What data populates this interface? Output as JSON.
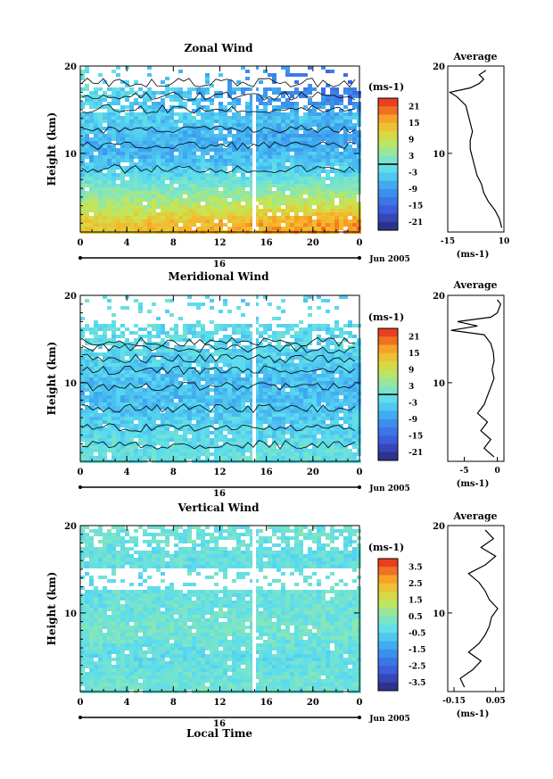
{
  "chart_data": [
    {
      "type": "heatmap",
      "title": "Zonal Wind",
      "ylabel": "Height (km)",
      "xlabel": "",
      "x_ticks": [
        "0",
        "4",
        "8",
        "12",
        "16",
        "20",
        "0"
      ],
      "y_ticks": [
        "20",
        "10"
      ],
      "xlim": [
        0,
        24
      ],
      "ylim": [
        1,
        20
      ],
      "date_label": "16",
      "month_label": "Jun 2005",
      "colorbar": {
        "unit": "(ms-1)",
        "ticks": [
          "21",
          "15",
          "9",
          "3",
          "-3",
          "-9",
          "-15",
          "-21"
        ],
        "values": [
          21,
          15,
          9,
          3,
          -3,
          -9,
          -15,
          -21
        ],
        "range": [
          -24,
          24
        ]
      },
      "field": {
        "data_ceiling_km": 17.5,
        "gap_start_hour": 14.8,
        "rows": [
          {
            "height_km": 2,
            "left": 12,
            "right": 18
          },
          {
            "height_km": 4,
            "left": 6,
            "right": 10
          },
          {
            "height_km": 6,
            "left": 2,
            "right": 3
          },
          {
            "height_km": 8,
            "left": -4,
            "right": -3
          },
          {
            "height_km": 10,
            "left": -7,
            "right": -6
          },
          {
            "height_km": 12,
            "left": -5,
            "right": -9
          },
          {
            "height_km": 14,
            "left": -3,
            "right": -6
          },
          {
            "height_km": 16,
            "left": -2,
            "right": -12
          },
          {
            "height_km": 17.5,
            "left": 0,
            "right": -15
          }
        ]
      },
      "average_panel": {
        "title": "Average",
        "xlabel": "(ms-1)",
        "x_ticks": [
          "-15",
          "10"
        ],
        "y_ticks": [
          "20",
          "10"
        ],
        "xlim": [
          -15,
          10
        ],
        "ylim": [
          1,
          20
        ],
        "profile": [
          {
            "height_km": 1.5,
            "value": 9
          },
          {
            "height_km": 2.5,
            "value": 8
          },
          {
            "height_km": 3.5,
            "value": 6
          },
          {
            "height_km": 4.5,
            "value": 3
          },
          {
            "height_km": 5.5,
            "value": 1
          },
          {
            "height_km": 6.5,
            "value": 0
          },
          {
            "height_km": 7.5,
            "value": -2
          },
          {
            "height_km": 8.5,
            "value": -3
          },
          {
            "height_km": 9.5,
            "value": -4
          },
          {
            "height_km": 10.5,
            "value": -5
          },
          {
            "height_km": 11.5,
            "value": -5
          },
          {
            "height_km": 12.5,
            "value": -4
          },
          {
            "height_km": 13.5,
            "value": -5
          },
          {
            "height_km": 14.5,
            "value": -6
          },
          {
            "height_km": 15.5,
            "value": -7
          },
          {
            "height_km": 16.5,
            "value": -11
          },
          {
            "height_km": 17,
            "value": -14
          },
          {
            "height_km": 17.5,
            "value": -5
          },
          {
            "height_km": 18,
            "value": -1
          },
          {
            "height_km": 18.5,
            "value": 1
          },
          {
            "height_km": 19,
            "value": -1
          },
          {
            "height_km": 19.5,
            "value": 2
          }
        ]
      }
    },
    {
      "type": "heatmap",
      "title": "Meridional Wind",
      "ylabel": "Height (km)",
      "xlabel": "",
      "x_ticks": [
        "0",
        "4",
        "8",
        "12",
        "16",
        "20",
        "0"
      ],
      "y_ticks": [
        "20",
        "10"
      ],
      "xlim": [
        0,
        24
      ],
      "ylim": [
        1,
        20
      ],
      "date_label": "16",
      "month_label": "Jun 2005",
      "colorbar": {
        "unit": "(ms-1)",
        "ticks": [
          "21",
          "15",
          "9",
          "3",
          "-3",
          "-9",
          "-15",
          "-21"
        ],
        "values": [
          21,
          15,
          9,
          3,
          -3,
          -9,
          -15,
          -21
        ],
        "range": [
          -24,
          24
        ]
      },
      "field": {
        "data_ceiling_km": 16.8,
        "gap_start_hour": 14.8,
        "rows": [
          {
            "height_km": 2,
            "left": -1,
            "right": -1
          },
          {
            "height_km": 4,
            "left": -2,
            "right": -3
          },
          {
            "height_km": 6,
            "left": -4,
            "right": -4
          },
          {
            "height_km": 8,
            "left": -6,
            "right": -5
          },
          {
            "height_km": 10,
            "left": -5,
            "right": -6
          },
          {
            "height_km": 12,
            "left": -4,
            "right": -4
          },
          {
            "height_km": 14,
            "left": -2,
            "right": -3
          },
          {
            "height_km": 16.8,
            "left": -1,
            "right": -3
          }
        ]
      },
      "average_panel": {
        "title": "Average",
        "xlabel": "(ms-1)",
        "x_ticks": [
          "-5",
          "0"
        ],
        "y_ticks": [
          "20",
          "10"
        ],
        "xlim": [
          -7.5,
          1
        ],
        "ylim": [
          1,
          20
        ],
        "profile": [
          {
            "height_km": 1.5,
            "value": -0.5
          },
          {
            "height_km": 2.5,
            "value": -2
          },
          {
            "height_km": 3.5,
            "value": -1
          },
          {
            "height_km": 4.5,
            "value": -2.5
          },
          {
            "height_km": 5.5,
            "value": -1.5
          },
          {
            "height_km": 6.5,
            "value": -3
          },
          {
            "height_km": 7.5,
            "value": -2
          },
          {
            "height_km": 8.5,
            "value": -1.5
          },
          {
            "height_km": 9.5,
            "value": -1
          },
          {
            "height_km": 10.5,
            "value": -0.5
          },
          {
            "height_km": 11.5,
            "value": -0.8
          },
          {
            "height_km": 12.5,
            "value": -0.5
          },
          {
            "height_km": 13.5,
            "value": -0.6
          },
          {
            "height_km": 14.5,
            "value": -1
          },
          {
            "height_km": 15.5,
            "value": -2
          },
          {
            "height_km": 16,
            "value": -7
          },
          {
            "height_km": 16.5,
            "value": -3
          },
          {
            "height_km": 17,
            "value": -6
          },
          {
            "height_km": 17.5,
            "value": -1
          },
          {
            "height_km": 18,
            "value": 0
          },
          {
            "height_km": 19,
            "value": 0.5
          },
          {
            "height_km": 19.5,
            "value": 0
          }
        ]
      }
    },
    {
      "type": "heatmap",
      "title": "Vertical Wind",
      "ylabel": "Height (km)",
      "xlabel": "Local Time",
      "x_ticks": [
        "0",
        "4",
        "8",
        "12",
        "16",
        "20",
        "0"
      ],
      "y_ticks": [
        "20",
        "10"
      ],
      "xlim": [
        0,
        24
      ],
      "ylim": [
        1,
        20
      ],
      "date_label": "16",
      "month_label": "Jun 2005",
      "colorbar": {
        "unit": "(ms-1)",
        "ticks": [
          "3.5",
          "2.5",
          "1.5",
          "0.5",
          "-0.5",
          "-1.5",
          "-2.5",
          "-3.5"
        ],
        "values": [
          3.5,
          2.5,
          1.5,
          0.5,
          -0.5,
          -1.5,
          -2.5,
          -3.5
        ],
        "range": [
          -4,
          4
        ]
      },
      "field": {
        "data_ceiling_km": 20,
        "gap_start_hour": 14.8,
        "rows": [
          {
            "height_km": 2,
            "left": 0.1,
            "right": 0.0
          },
          {
            "height_km": 5,
            "left": -0.3,
            "right": -0.2
          },
          {
            "height_km": 8,
            "left": 0.2,
            "right": 0.1
          },
          {
            "height_km": 11,
            "left": -0.1,
            "right": 0.0
          },
          {
            "height_km": 14,
            "left": -0.2,
            "right": -0.1
          },
          {
            "height_km": 17,
            "left": -0.1,
            "right": -0.2
          },
          {
            "height_km": 20,
            "left": 0.0,
            "right": 0.0
          }
        ]
      },
      "average_panel": {
        "title": "Average",
        "xlabel": "(ms-1)",
        "x_ticks": [
          "-0.15",
          "0.05"
        ],
        "y_ticks": [
          "20",
          "10"
        ],
        "xlim": [
          -0.18,
          0.09
        ],
        "ylim": [
          1,
          20
        ],
        "profile": [
          {
            "height_km": 1.5,
            "value": -0.1
          },
          {
            "height_km": 2.5,
            "value": -0.12
          },
          {
            "height_km": 3.5,
            "value": -0.06
          },
          {
            "height_km": 4.5,
            "value": -0.02
          },
          {
            "height_km": 5.5,
            "value": -0.08
          },
          {
            "height_km": 6.5,
            "value": -0.03
          },
          {
            "height_km": 7.5,
            "value": 0.0
          },
          {
            "height_km": 8.5,
            "value": 0.02
          },
          {
            "height_km": 9.5,
            "value": 0.03
          },
          {
            "height_km": 10.5,
            "value": 0.06
          },
          {
            "height_km": 11.5,
            "value": 0.02
          },
          {
            "height_km": 12.5,
            "value": 0.0
          },
          {
            "height_km": 13.5,
            "value": -0.03
          },
          {
            "height_km": 14.5,
            "value": -0.08
          },
          {
            "height_km": 15.5,
            "value": 0.0
          },
          {
            "height_km": 16.5,
            "value": 0.05
          },
          {
            "height_km": 17.5,
            "value": -0.02
          },
          {
            "height_km": 18.5,
            "value": 0.04
          },
          {
            "height_km": 19.5,
            "value": 0.0
          }
        ]
      }
    }
  ]
}
